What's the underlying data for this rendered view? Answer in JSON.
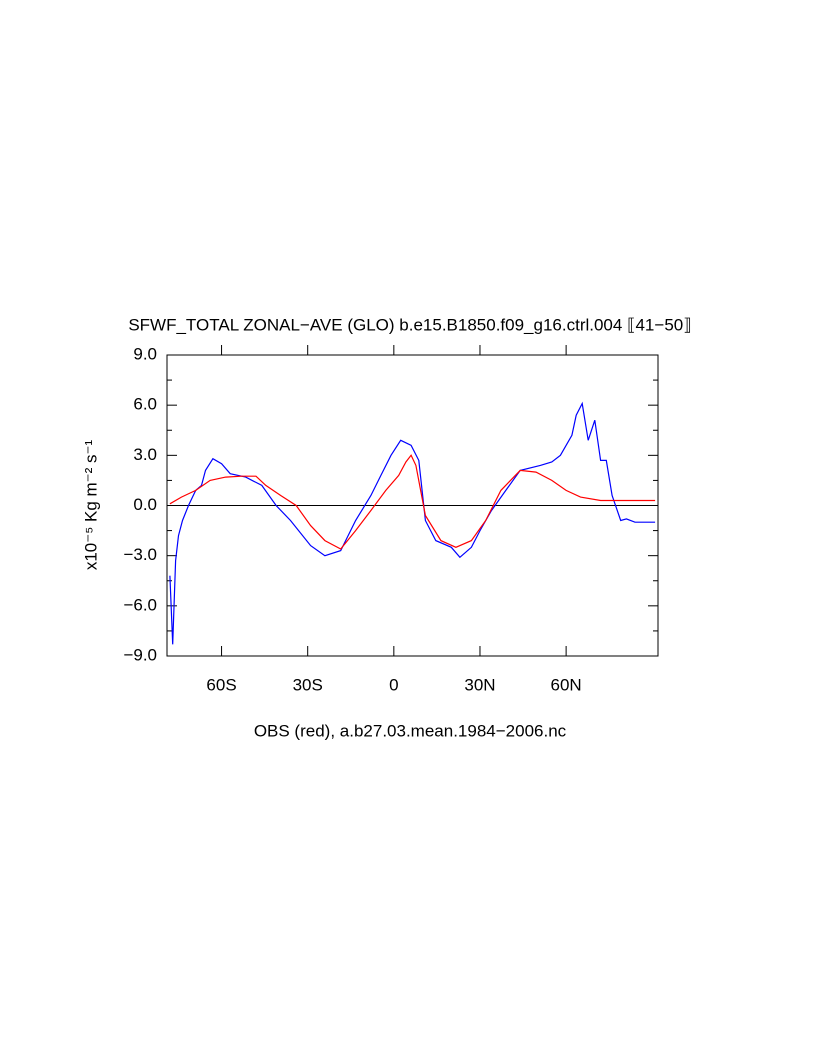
{
  "chart_data": {
    "type": "line",
    "title": "SFWF_TOTAL ZONAL−AVE (GLO) b.e15.B1850.f09_g16.ctrl.004 ⟦41−50⟧",
    "x_label": "OBS (red), a.b27.03.mean.1984−2006.nc",
    "y_label": "x10⁻⁵ Kg m⁻² s⁻¹",
    "xlim": [
      -79,
      92
    ],
    "ylim": [
      -9,
      9
    ],
    "xticks": [
      {
        "value": -60,
        "label": "60S"
      },
      {
        "value": -30,
        "label": "30S"
      },
      0,
      {
        "value": 30,
        "label": "30N"
      },
      {
        "value": 60,
        "label": "60N"
      }
    ],
    "yticks": [
      {
        "value": -9,
        "label": "−9.0"
      },
      {
        "value": -6,
        "label": "−6.0"
      },
      {
        "value": -3,
        "label": "−3.0"
      },
      {
        "value": 0,
        "label": "0.0"
      },
      {
        "value": 3,
        "label": "3.0"
      },
      {
        "value": 6,
        "label": "6.0"
      },
      {
        "value": 9,
        "label": "9.0"
      }
    ],
    "hline": 0,
    "series": [
      {
        "color": "#0000ff",
        "x": [
          -78,
          -77,
          -76,
          -75,
          -73.6,
          -71.5,
          -69,
          -67,
          -65.6,
          -63,
          -60,
          -57,
          -51.6,
          -46,
          -41,
          -36,
          -29,
          -24,
          -18.5,
          -13.3,
          -8,
          -4.5,
          -1,
          2.4,
          6,
          8.7,
          11,
          14.6,
          20,
          23,
          27,
          30,
          34,
          39,
          44,
          51,
          55,
          58,
          62,
          63.5,
          65.6,
          67.7,
          70,
          72,
          74,
          76,
          79,
          81,
          84,
          91
        ],
        "values": [
          -4.2,
          -8.3,
          -3.3,
          -1.8,
          -0.9,
          0,
          0.9,
          1.2,
          2.1,
          2.8,
          2.5,
          1.9,
          1.7,
          1.2,
          0,
          -0.9,
          -2.4,
          -3.0,
          -2.7,
          -0.9,
          0.6,
          1.8,
          3.0,
          3.9,
          3.6,
          2.7,
          -0.9,
          -2.1,
          -2.5,
          -3.1,
          -2.5,
          -1.5,
          -0.3,
          0.9,
          2.1,
          2.4,
          2.6,
          3.0,
          4.2,
          5.4,
          6.1,
          3.9,
          5.1,
          2.7,
          2.7,
          0.6,
          -0.9,
          -0.8,
          -1.0,
          -1.0
        ]
      },
      {
        "color": "#ff0000",
        "x": [
          -78,
          -74,
          -69,
          -64,
          -58.6,
          -53,
          -48,
          -44.6,
          -39.4,
          -34,
          -29,
          -24,
          -18.5,
          -13.3,
          -8,
          -2.8,
          1.7,
          4.2,
          6,
          7.7,
          11,
          16.4,
          21.6,
          27,
          32,
          37.3,
          44,
          49.5,
          55,
          60,
          65,
          72,
          79,
          91
        ],
        "values": [
          0.1,
          0.5,
          0.9,
          1.5,
          1.7,
          1.75,
          1.75,
          1.2,
          0.6,
          0,
          -1.2,
          -2.1,
          -2.6,
          -1.5,
          -0.3,
          0.9,
          1.8,
          2.6,
          3.0,
          2.4,
          -0.6,
          -2.1,
          -2.5,
          -2.1,
          -0.9,
          0.9,
          2.1,
          2.0,
          1.5,
          0.9,
          0.5,
          0.3,
          0.3,
          0.3
        ]
      }
    ]
  }
}
